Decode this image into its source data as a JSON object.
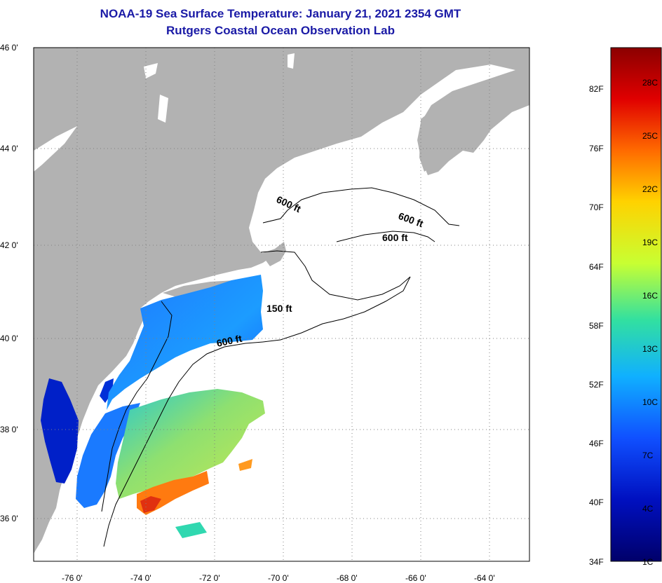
{
  "title": {
    "line1": "NOAA-19 Sea Surface Temperature:  January 21, 2021 2354 GMT",
    "line2": "Rutgers Coastal Ocean Observation Lab"
  },
  "axes": {
    "lat_labels": [
      "46 0'",
      "44 0'",
      "42 0'",
      "40 0'",
      "38 0'",
      "36 0'"
    ],
    "lon_labels": [
      "-76 0'",
      "-74 0'",
      "-72 0'",
      "-70 0'",
      "-68 0'",
      "-66 0'",
      "-64 0'"
    ]
  },
  "contours": {
    "label_600_a": "600 ft",
    "label_600_b": "600 ft",
    "label_600_c": "600 ft",
    "label_150": "150 ft",
    "label_600_d": "600 ft"
  },
  "colorbar": {
    "fahrenheit": [
      "82F",
      "76F",
      "70F",
      "64F",
      "58F",
      "52F",
      "46F",
      "40F",
      "34F"
    ],
    "celsius": [
      "28C",
      "25C",
      "22C",
      "19C",
      "16C",
      "13C",
      "10C",
      "7C",
      "4C",
      "1C"
    ],
    "colors": [
      "#8b0000",
      "#e00000",
      "#ff6a00",
      "#ffd200",
      "#c8ff32",
      "#32e0a0",
      "#10b0ff",
      "#1050ff",
      "#0010c0",
      "#00006a"
    ]
  },
  "map_colors": {
    "land": "#b2b2b2",
    "ocean_nodata": "#ffffff"
  }
}
